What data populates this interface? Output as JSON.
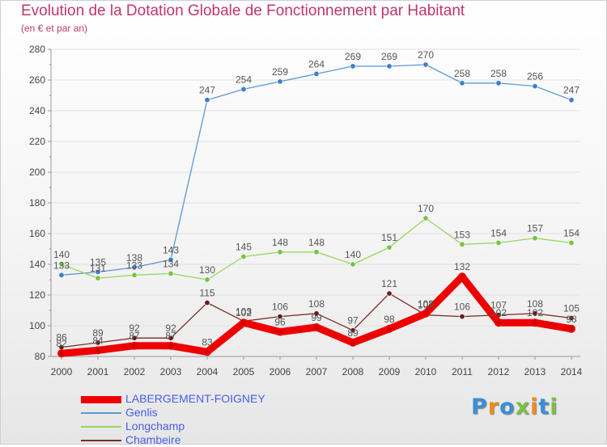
{
  "title": "Evolution de la Dotation Globale de Fonctionnement par Habitant",
  "subtitle": "(en € et par an)",
  "logo_text": "Proxiti",
  "colors": {
    "title": "#c0366a",
    "legend_text": "#4a5ee8",
    "axis_text": "#444444",
    "grid": "#e0e0e0",
    "logo": [
      "#3b8fd6",
      "#f08a1c",
      "#3b8fd6",
      "#7ac142",
      "#f08a1c",
      "#3b8fd6",
      "#7ac142"
    ]
  },
  "chart_data": {
    "type": "line",
    "title": "Evolution de la Dotation Globale de Fonctionnement par Habitant",
    "subtitle": "(en € et par an)",
    "xlabel": "",
    "ylabel": "",
    "x": [
      2000,
      2001,
      2002,
      2003,
      2004,
      2005,
      2006,
      2007,
      2008,
      2009,
      2010,
      2011,
      2012,
      2013,
      2014
    ],
    "ylim": [
      80,
      280
    ],
    "yticks": [
      80,
      100,
      120,
      140,
      160,
      180,
      200,
      220,
      240,
      260,
      280
    ],
    "grid": true,
    "legend_position": "bottom-left",
    "series": [
      {
        "name": "LABERGEMENT-FOIGNEY",
        "color": "#ee0000",
        "marker": "#cc0000",
        "emphasis": true,
        "values": [
          82,
          84,
          87,
          87,
          83,
          102,
          96,
          99,
          89,
          98,
          108,
          132,
          102,
          102,
          98
        ]
      },
      {
        "name": "Genlis",
        "color": "#5d97d3",
        "marker": "#3f7fc8",
        "emphasis": false,
        "values": [
          133,
          135,
          138,
          143,
          247,
          254,
          259,
          264,
          269,
          269,
          270,
          258,
          258,
          256,
          247
        ]
      },
      {
        "name": "Longchamp",
        "color": "#98d65e",
        "marker": "#7ac142",
        "emphasis": false,
        "values": [
          140,
          131,
          133,
          134,
          130,
          145,
          148,
          148,
          140,
          151,
          170,
          153,
          154,
          157,
          154
        ]
      },
      {
        "name": "Chambeire",
        "color": "#7a2e2e",
        "marker": "#6b1a1a",
        "emphasis": false,
        "values": [
          86,
          89,
          92,
          92,
          115,
          103,
          106,
          108,
          97,
          121,
          107,
          106,
          107,
          108,
          105
        ]
      }
    ]
  }
}
